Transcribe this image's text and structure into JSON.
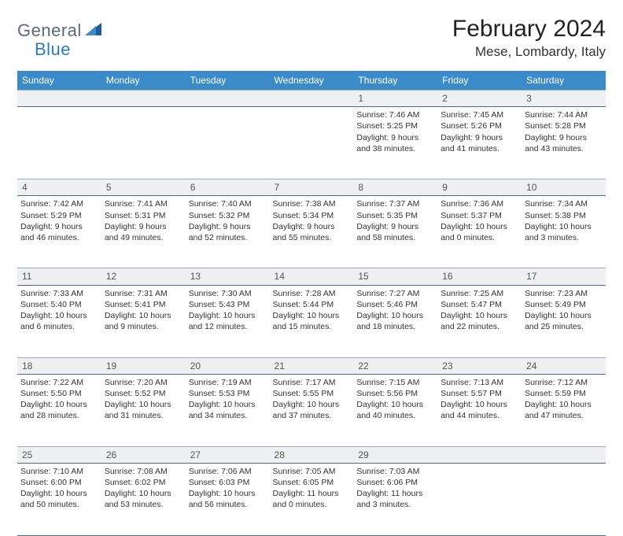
{
  "logo": {
    "part1": "General",
    "part2": "Blue"
  },
  "title": "February 2024",
  "location": "Mese, Lombardy, Italy",
  "colors": {
    "header_bg": "#3b8bc9",
    "header_text": "#ffffff",
    "daynum_bg": "#eef0f2",
    "border": "#4a6a8a",
    "logo_gray": "#5a6a7a",
    "logo_blue": "#2d7cc0"
  },
  "weekdays": [
    "Sunday",
    "Monday",
    "Tuesday",
    "Wednesday",
    "Thursday",
    "Friday",
    "Saturday"
  ],
  "weeks": [
    {
      "nums": [
        "",
        "",
        "",
        "",
        "1",
        "2",
        "3"
      ],
      "cells": [
        null,
        null,
        null,
        null,
        {
          "sunrise": "7:46 AM",
          "sunset": "5:25 PM",
          "daylight": "9 hours and 38 minutes."
        },
        {
          "sunrise": "7:45 AM",
          "sunset": "5:26 PM",
          "daylight": "9 hours and 41 minutes."
        },
        {
          "sunrise": "7:44 AM",
          "sunset": "5:28 PM",
          "daylight": "9 hours and 43 minutes."
        }
      ]
    },
    {
      "nums": [
        "4",
        "5",
        "6",
        "7",
        "8",
        "9",
        "10"
      ],
      "cells": [
        {
          "sunrise": "7:42 AM",
          "sunset": "5:29 PM",
          "daylight": "9 hours and 46 minutes."
        },
        {
          "sunrise": "7:41 AM",
          "sunset": "5:31 PM",
          "daylight": "9 hours and 49 minutes."
        },
        {
          "sunrise": "7:40 AM",
          "sunset": "5:32 PM",
          "daylight": "9 hours and 52 minutes."
        },
        {
          "sunrise": "7:38 AM",
          "sunset": "5:34 PM",
          "daylight": "9 hours and 55 minutes."
        },
        {
          "sunrise": "7:37 AM",
          "sunset": "5:35 PM",
          "daylight": "9 hours and 58 minutes."
        },
        {
          "sunrise": "7:36 AM",
          "sunset": "5:37 PM",
          "daylight": "10 hours and 0 minutes."
        },
        {
          "sunrise": "7:34 AM",
          "sunset": "5:38 PM",
          "daylight": "10 hours and 3 minutes."
        }
      ]
    },
    {
      "nums": [
        "11",
        "12",
        "13",
        "14",
        "15",
        "16",
        "17"
      ],
      "cells": [
        {
          "sunrise": "7:33 AM",
          "sunset": "5:40 PM",
          "daylight": "10 hours and 6 minutes."
        },
        {
          "sunrise": "7:31 AM",
          "sunset": "5:41 PM",
          "daylight": "10 hours and 9 minutes."
        },
        {
          "sunrise": "7:30 AM",
          "sunset": "5:43 PM",
          "daylight": "10 hours and 12 minutes."
        },
        {
          "sunrise": "7:28 AM",
          "sunset": "5:44 PM",
          "daylight": "10 hours and 15 minutes."
        },
        {
          "sunrise": "7:27 AM",
          "sunset": "5:46 PM",
          "daylight": "10 hours and 18 minutes."
        },
        {
          "sunrise": "7:25 AM",
          "sunset": "5:47 PM",
          "daylight": "10 hours and 22 minutes."
        },
        {
          "sunrise": "7:23 AM",
          "sunset": "5:49 PM",
          "daylight": "10 hours and 25 minutes."
        }
      ]
    },
    {
      "nums": [
        "18",
        "19",
        "20",
        "21",
        "22",
        "23",
        "24"
      ],
      "cells": [
        {
          "sunrise": "7:22 AM",
          "sunset": "5:50 PM",
          "daylight": "10 hours and 28 minutes."
        },
        {
          "sunrise": "7:20 AM",
          "sunset": "5:52 PM",
          "daylight": "10 hours and 31 minutes."
        },
        {
          "sunrise": "7:19 AM",
          "sunset": "5:53 PM",
          "daylight": "10 hours and 34 minutes."
        },
        {
          "sunrise": "7:17 AM",
          "sunset": "5:55 PM",
          "daylight": "10 hours and 37 minutes."
        },
        {
          "sunrise": "7:15 AM",
          "sunset": "5:56 PM",
          "daylight": "10 hours and 40 minutes."
        },
        {
          "sunrise": "7:13 AM",
          "sunset": "5:57 PM",
          "daylight": "10 hours and 44 minutes."
        },
        {
          "sunrise": "7:12 AM",
          "sunset": "5:59 PM",
          "daylight": "10 hours and 47 minutes."
        }
      ]
    },
    {
      "nums": [
        "25",
        "26",
        "27",
        "28",
        "29",
        "",
        ""
      ],
      "cells": [
        {
          "sunrise": "7:10 AM",
          "sunset": "6:00 PM",
          "daylight": "10 hours and 50 minutes."
        },
        {
          "sunrise": "7:08 AM",
          "sunset": "6:02 PM",
          "daylight": "10 hours and 53 minutes."
        },
        {
          "sunrise": "7:06 AM",
          "sunset": "6:03 PM",
          "daylight": "10 hours and 56 minutes."
        },
        {
          "sunrise": "7:05 AM",
          "sunset": "6:05 PM",
          "daylight": "11 hours and 0 minutes."
        },
        {
          "sunrise": "7:03 AM",
          "sunset": "6:06 PM",
          "daylight": "11 hours and 3 minutes."
        },
        null,
        null
      ]
    }
  ],
  "labels": {
    "sunrise": "Sunrise:",
    "sunset": "Sunset:",
    "daylight": "Daylight:"
  }
}
